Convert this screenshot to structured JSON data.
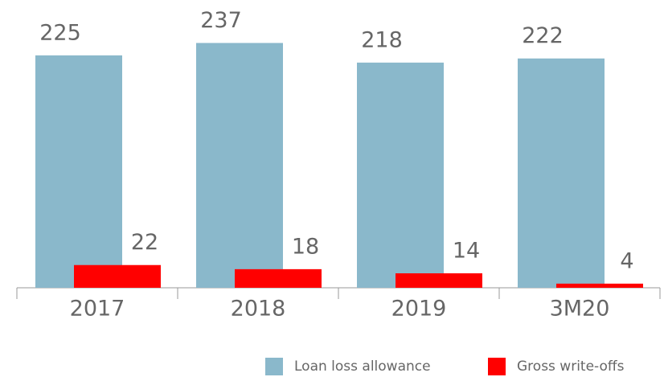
{
  "chart_data": {
    "type": "bar",
    "categories": [
      "2017",
      "2018",
      "2019",
      "3M20"
    ],
    "series": [
      {
        "name": "Loan loss allowance",
        "color": "#8ab8cb",
        "values": [
          225,
          237,
          218,
          222
        ]
      },
      {
        "name": "Gross write-offs",
        "color": "#ff0000",
        "values": [
          22,
          18,
          14,
          4
        ]
      }
    ]
  }
}
